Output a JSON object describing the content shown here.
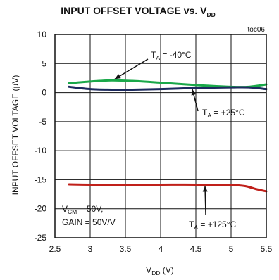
{
  "chart_data": {
    "type": "line",
    "title_main": "INPUT OFFSET VOLTAGE vs. V",
    "title_sub": "DD",
    "figure_id": "toc06",
    "xlabel_main": "V",
    "xlabel_sub": "DD",
    "xlabel_unit": " (V)",
    "ylabel": "INPUT OFFSET VOLTAGE (µV)",
    "xlim": [
      2.5,
      5.5
    ],
    "ylim": [
      -25,
      10
    ],
    "xticks": [
      "2.5",
      "3",
      "3.5",
      "4",
      "4.5",
      "5",
      "5.5"
    ],
    "yticks": [
      "10",
      "5",
      "0",
      "-5",
      "-10",
      "-15",
      "-20",
      "-25"
    ],
    "grid": true,
    "series": [
      {
        "name": "TA = -40°C",
        "color": "#1aa84a",
        "x": [
          2.7,
          3.0,
          3.3,
          3.6,
          4.0,
          4.5,
          5.0,
          5.25,
          5.5
        ],
        "y": [
          1.6,
          1.9,
          2.1,
          2.0,
          1.7,
          1.3,
          1.0,
          1.0,
          1.4
        ]
      },
      {
        "name": "TA = +25°C",
        "color": "#1c2a5e",
        "x": [
          2.7,
          3.0,
          3.3,
          3.6,
          4.0,
          4.5,
          5.0,
          5.25,
          5.5
        ],
        "y": [
          1.0,
          0.6,
          0.5,
          0.5,
          0.6,
          0.8,
          0.9,
          0.9,
          0.6
        ]
      },
      {
        "name": "TA = +125°C",
        "color": "#c0201a",
        "x": [
          2.7,
          3.0,
          3.5,
          4.0,
          4.5,
          5.0,
          5.2,
          5.35,
          5.5
        ],
        "y": [
          -15.8,
          -15.85,
          -15.85,
          -15.85,
          -15.85,
          -15.9,
          -16.1,
          -16.6,
          -17.0
        ]
      }
    ],
    "annotations": [
      {
        "main": "T",
        "sub": "A",
        "rest": " = -40°C"
      },
      {
        "main": "T",
        "sub": "A",
        "rest": " = +25°C"
      },
      {
        "main": "T",
        "sub": "A",
        "rest": " = +125°C"
      }
    ],
    "conditions": [
      "VCM = 50V,",
      "GAIN = 50V/V"
    ],
    "conditions_parts": [
      {
        "main": "V",
        "sub": "CM",
        "rest": " = 50V,"
      },
      {
        "main": "GAIN = 50V/V",
        "sub": "",
        "rest": ""
      }
    ]
  }
}
